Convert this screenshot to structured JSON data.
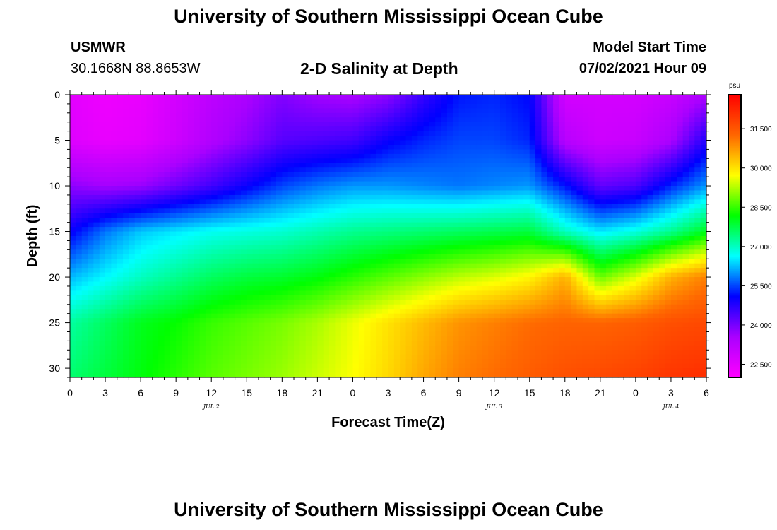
{
  "header": {
    "title": "University of Southern Mississippi Ocean Cube",
    "station": "USMWR",
    "coords": "30.1668N  88.8653W",
    "subtitle": "2-D Salinity at Depth",
    "model_start_label": "Model Start Time",
    "model_start_value": "07/02/2021 Hour 09"
  },
  "footer": {
    "title": "University of Southern Mississippi Ocean Cube"
  },
  "chart_data": {
    "type": "heatmap",
    "title": "2-D Salinity at Depth",
    "xlabel": "Forecast Time(Z)",
    "ylabel": "Depth (ft)",
    "x_hours": [
      0,
      3,
      6,
      9,
      12,
      15,
      18,
      21,
      24,
      27,
      30,
      33,
      36,
      39,
      42,
      45,
      48,
      51,
      54
    ],
    "x_tick_labels": [
      "0",
      "3",
      "6",
      "9",
      "12",
      "15",
      "18",
      "21",
      "0",
      "3",
      "6",
      "9",
      "12",
      "15",
      "18",
      "21",
      "0",
      "3",
      "6"
    ],
    "day_labels": [
      {
        "label": "JUL 2",
        "hour": 12
      },
      {
        "label": "JUL 3",
        "hour": 36
      },
      {
        "label": "JUL 4",
        "hour": 51
      }
    ],
    "y_ticks": [
      0,
      5,
      10,
      15,
      20,
      25,
      30
    ],
    "ylim": [
      0,
      31
    ],
    "xlim": [
      0,
      54
    ],
    "depth_levels": [
      0,
      5,
      10,
      15,
      20,
      25,
      31
    ],
    "salinity": [
      [
        22.5,
        22.3,
        22.4,
        22.8,
        23.2,
        23.5,
        23.9,
        23.6,
        23.5,
        23.8,
        24.6,
        25.2,
        25.3,
        25.1,
        22.8,
        22.8,
        22.8,
        23.0,
        23.5
      ],
      [
        22.6,
        22.4,
        22.5,
        22.9,
        23.4,
        23.8,
        24.3,
        24.4,
        24.5,
        25.0,
        25.3,
        25.5,
        25.5,
        25.3,
        23.3,
        22.9,
        23.0,
        23.5,
        24.8
      ],
      [
        23.8,
        23.6,
        23.7,
        24.1,
        24.5,
        25.0,
        25.5,
        25.8,
        26.0,
        26.0,
        25.9,
        25.8,
        25.9,
        26.0,
        25.2,
        24.2,
        24.4,
        25.3,
        26.0
      ],
      [
        25.0,
        25.8,
        26.3,
        26.5,
        26.7,
        26.8,
        26.9,
        27.1,
        27.3,
        27.4,
        27.5,
        27.6,
        27.7,
        27.8,
        27.0,
        26.5,
        26.8,
        27.3,
        28.0
      ],
      [
        26.2,
        26.6,
        27.0,
        27.3,
        27.6,
        27.8,
        27.9,
        28.1,
        28.4,
        28.7,
        29.0,
        29.3,
        29.5,
        29.8,
        30.5,
        28.8,
        29.5,
        30.5,
        31.0
      ],
      [
        27.2,
        27.6,
        28.0,
        28.2,
        28.5,
        28.7,
        28.9,
        29.2,
        29.6,
        30.0,
        30.4,
        30.8,
        31.0,
        31.2,
        31.3,
        31.3,
        31.4,
        31.6,
        31.7
      ],
      [
        27.5,
        27.8,
        28.1,
        28.4,
        28.7,
        28.9,
        29.1,
        29.4,
        29.7,
        30.1,
        30.6,
        31.0,
        31.2,
        31.4,
        31.6,
        31.7,
        31.8,
        32.0,
        32.1
      ]
    ],
    "colorbar": {
      "unit": "psu",
      "min": 22.0,
      "max": 32.8,
      "ticks": [
        22.5,
        24.0,
        25.5,
        27.0,
        28.5,
        30.0,
        31.5
      ],
      "tick_labels": [
        "22.500",
        "24.000",
        "25.500",
        "27.000",
        "28.500",
        "30.000",
        "31.500"
      ],
      "colors": [
        "#ff00ff",
        "#aa00ff",
        "#0000ff",
        "#00ffff",
        "#00ff00",
        "#ffff00",
        "#ff6600",
        "#ff0000"
      ]
    }
  }
}
